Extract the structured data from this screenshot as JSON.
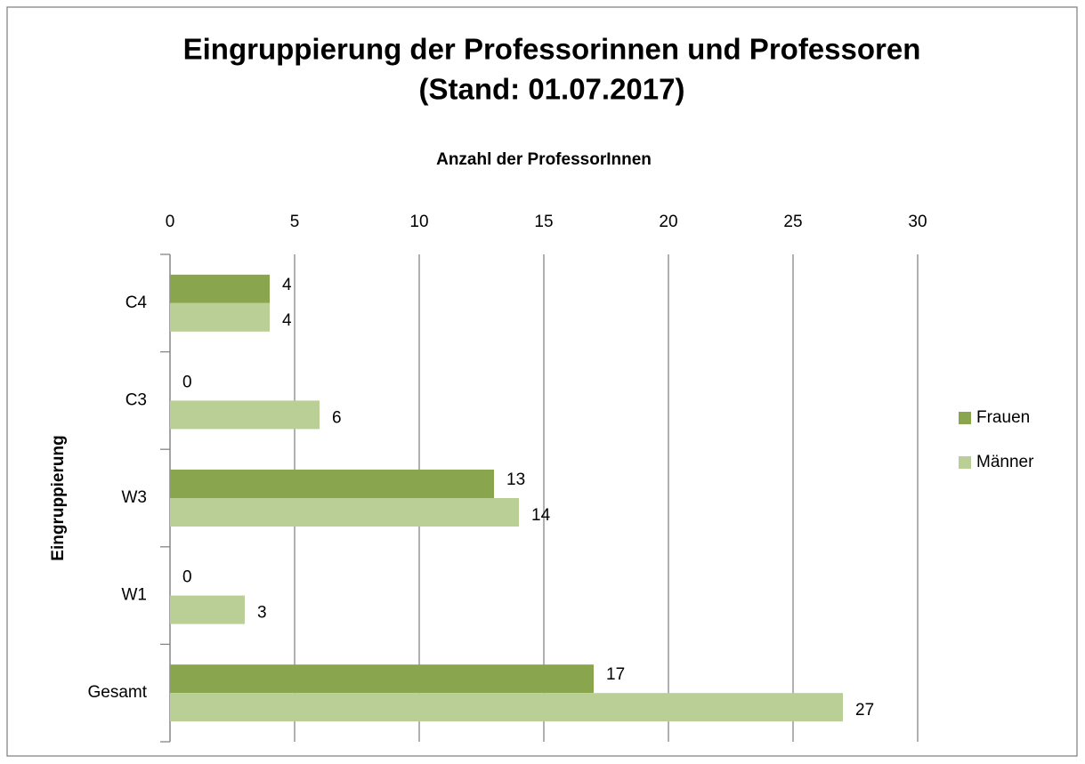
{
  "chart_data": {
    "type": "bar",
    "orientation": "horizontal",
    "title": "Eingruppierung der Professorinnen und Professoren",
    "subtitle": "(Stand: 01.07.2017)",
    "x_label": "Anzahl der ProfessorInnen",
    "y_label": "Eingruppierung",
    "categories": [
      "C4",
      "C3",
      "W3",
      "W1",
      "Gesamt"
    ],
    "series": [
      {
        "name": "Frauen",
        "color": "#89a54e",
        "values": [
          4,
          0,
          13,
          0,
          17
        ]
      },
      {
        "name": "Männer",
        "color": "#b9cf96",
        "values": [
          4,
          6,
          14,
          3,
          27
        ]
      }
    ],
    "xlim": [
      0,
      30
    ],
    "xticks": [
      0,
      5,
      10,
      15,
      20,
      25,
      30
    ],
    "grid": true,
    "legend": "right"
  }
}
